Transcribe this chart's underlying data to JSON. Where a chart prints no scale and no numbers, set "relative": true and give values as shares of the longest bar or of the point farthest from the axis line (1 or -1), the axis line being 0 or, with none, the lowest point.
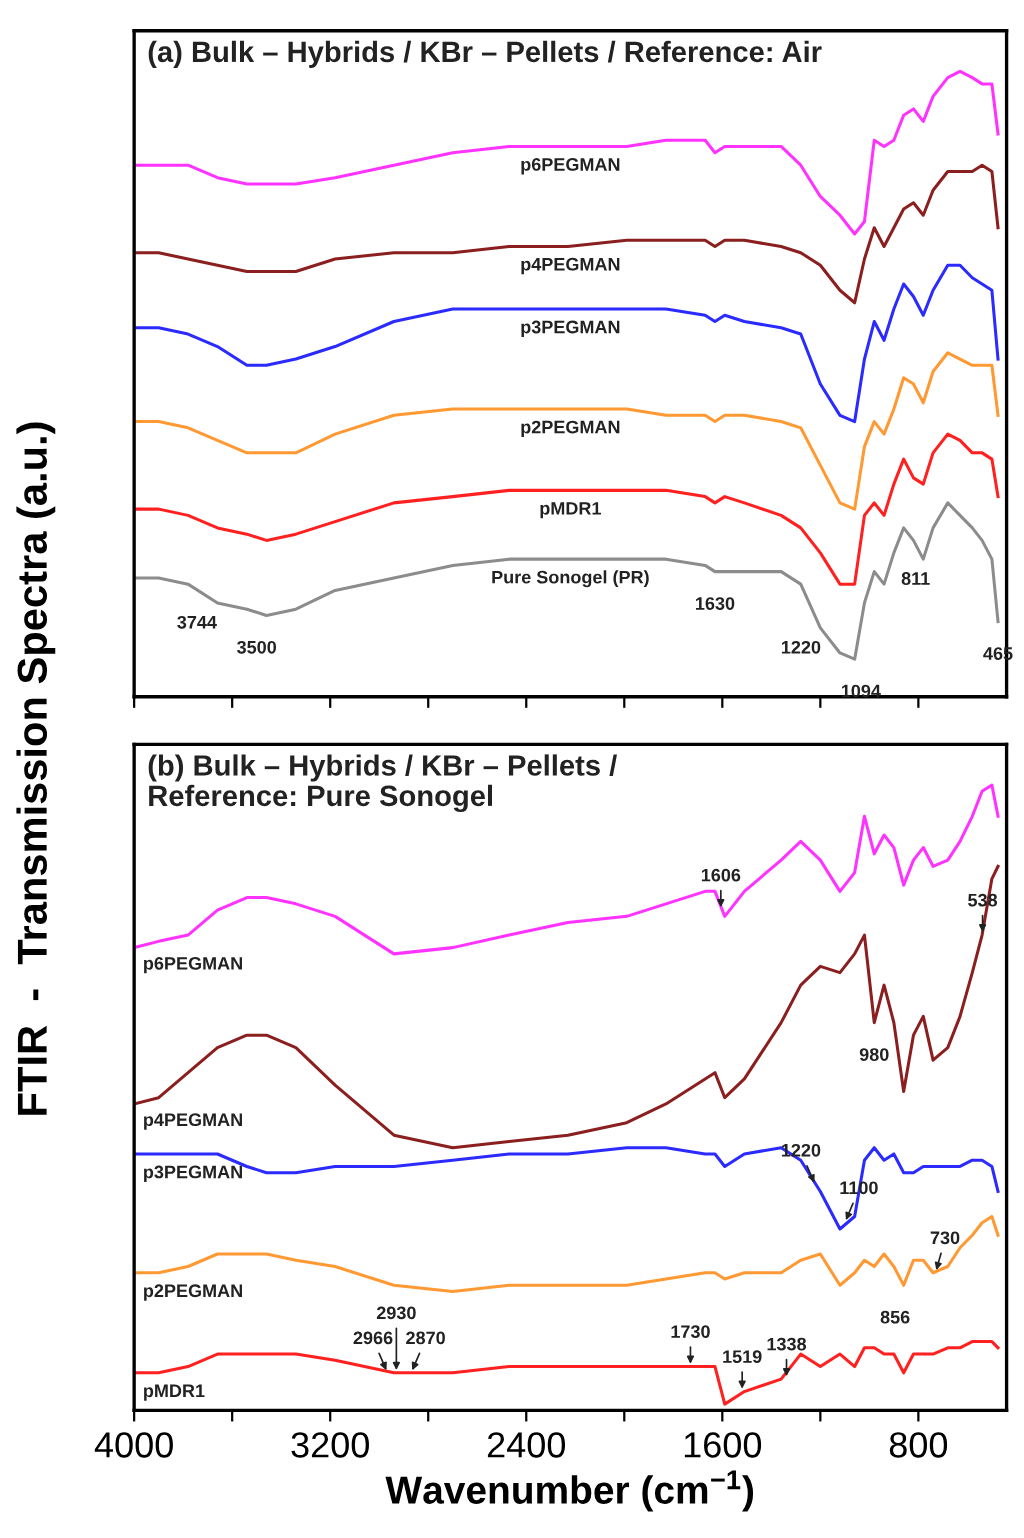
{
  "chart_data": [
    {
      "type": "line",
      "title": "(a) Bulk – Hybrids / KBr – Pellets / Reference: Air",
      "ylabel": "FTIR  -  Transmission Spectra (a.u.)",
      "relative": true,
      "tick_labels": false,
      "x": [
        4000,
        3900,
        3780,
        3660,
        3540,
        3460,
        3340,
        3180,
        2940,
        2700,
        2470,
        2230,
        1990,
        1830,
        1670,
        1630,
        1590,
        1510,
        1360,
        1280,
        1200,
        1120,
        1060,
        1020,
        980,
        940,
        900,
        860,
        820,
        780,
        740,
        680,
        630,
        580,
        540,
        500,
        475
      ],
      "xlim": [
        4000,
        440
      ],
      "xticks": [
        4000,
        {
          "value": 3600,
          "label": null
        },
        3200,
        {
          "value": 2800,
          "label": null
        },
        2400,
        {
          "value": 2000,
          "label": null
        },
        1600,
        {
          "value": 1200,
          "label": null
        },
        800
      ],
      "series": [
        {
          "name": "p6PEGMAN",
          "color": "#ff33ff",
          "values": [
            0.85,
            0.85,
            0.85,
            0.83,
            0.82,
            0.82,
            0.82,
            0.83,
            0.85,
            0.87,
            0.88,
            0.88,
            0.88,
            0.89,
            0.89,
            0.87,
            0.88,
            0.88,
            0.88,
            0.85,
            0.8,
            0.77,
            0.74,
            0.76,
            0.89,
            0.88,
            0.89,
            0.93,
            0.94,
            0.92,
            0.96,
            0.99,
            1.0,
            0.99,
            0.98,
            0.98,
            0.9
          ]
        },
        {
          "name": "p4PEGMAN",
          "color": "#8b1f1f",
          "values": [
            0.71,
            0.71,
            0.7,
            0.69,
            0.68,
            0.68,
            0.68,
            0.7,
            0.71,
            0.71,
            0.72,
            0.72,
            0.73,
            0.73,
            0.73,
            0.72,
            0.73,
            0.73,
            0.72,
            0.71,
            0.69,
            0.65,
            0.63,
            0.7,
            0.75,
            0.72,
            0.75,
            0.78,
            0.79,
            0.77,
            0.81,
            0.84,
            0.84,
            0.84,
            0.85,
            0.84,
            0.75
          ]
        },
        {
          "name": "p3PEGMAN",
          "color": "#2b2bff",
          "values": [
            0.59,
            0.59,
            0.58,
            0.56,
            0.53,
            0.53,
            0.54,
            0.56,
            0.6,
            0.62,
            0.62,
            0.62,
            0.62,
            0.62,
            0.61,
            0.6,
            0.61,
            0.6,
            0.59,
            0.58,
            0.5,
            0.45,
            0.44,
            0.54,
            0.6,
            0.57,
            0.62,
            0.66,
            0.64,
            0.61,
            0.65,
            0.69,
            0.69,
            0.67,
            0.66,
            0.65,
            0.54
          ]
        },
        {
          "name": "p2PEGMAN",
          "color": "#ff9933",
          "values": [
            0.44,
            0.44,
            0.43,
            0.41,
            0.39,
            0.39,
            0.39,
            0.42,
            0.45,
            0.46,
            0.46,
            0.46,
            0.46,
            0.45,
            0.45,
            0.44,
            0.45,
            0.45,
            0.44,
            0.43,
            0.37,
            0.31,
            0.3,
            0.4,
            0.44,
            0.42,
            0.46,
            0.51,
            0.5,
            0.47,
            0.52,
            0.55,
            0.54,
            0.53,
            0.53,
            0.53,
            0.45
          ]
        },
        {
          "name": "pMDR1",
          "color": "#ff2020",
          "values": [
            0.3,
            0.3,
            0.29,
            0.27,
            0.26,
            0.25,
            0.26,
            0.28,
            0.31,
            0.32,
            0.33,
            0.33,
            0.33,
            0.33,
            0.32,
            0.31,
            0.32,
            0.31,
            0.29,
            0.27,
            0.23,
            0.18,
            0.18,
            0.29,
            0.31,
            0.29,
            0.34,
            0.38,
            0.35,
            0.34,
            0.39,
            0.42,
            0.41,
            0.39,
            0.39,
            0.38,
            0.32
          ]
        },
        {
          "name": "Pure Sonogel (PR)",
          "color": "#8c8c8c",
          "values": [
            0.19,
            0.19,
            0.18,
            0.15,
            0.14,
            0.13,
            0.14,
            0.17,
            0.19,
            0.21,
            0.22,
            0.22,
            0.22,
            0.22,
            0.21,
            0.2,
            0.2,
            0.2,
            0.2,
            0.18,
            0.11,
            0.07,
            0.06,
            0.15,
            0.2,
            0.18,
            0.23,
            0.27,
            0.25,
            0.22,
            0.27,
            0.31,
            0.29,
            0.27,
            0.25,
            0.22,
            0.12
          ]
        }
      ],
      "annotations": [
        {
          "text": "3744",
          "x": 3744,
          "y": 0.17
        },
        {
          "text": "3500",
          "x": 3500,
          "y": 0.13
        },
        {
          "text": "1630",
          "x": 1630,
          "y": 0.2
        },
        {
          "text": "1220",
          "x": 1220,
          "y": 0.13
        },
        {
          "text": "1094",
          "x": 1094,
          "y": 0.06
        },
        {
          "text": "811",
          "x": 811,
          "y": 0.24
        },
        {
          "text": "465",
          "x": 475,
          "y": 0.12
        }
      ]
    },
    {
      "type": "line",
      "title": "(b) Bulk – Hybrids / KBr – Pellets /\nReference: Pure Sonogel",
      "xlabel": "Wavenumber (cm$^{−1}$)",
      "relative": true,
      "tick_labels": "x",
      "x": [
        4000,
        3900,
        3780,
        3660,
        3540,
        3460,
        3340,
        3180,
        2940,
        2700,
        2470,
        2230,
        1990,
        1830,
        1670,
        1630,
        1590,
        1510,
        1360,
        1280,
        1200,
        1120,
        1060,
        1020,
        980,
        940,
        900,
        860,
        820,
        780,
        740,
        680,
        630,
        580,
        540,
        500,
        475
      ],
      "xlim": [
        4000,
        440
      ],
      "xticks": [
        4000,
        {
          "value": 3600,
          "label": null
        },
        3200,
        {
          "value": 2800,
          "label": null
        },
        2400,
        {
          "value": 2000,
          "label": null
        },
        1600,
        {
          "value": 1200,
          "label": null
        },
        800
      ],
      "series": [
        {
          "name": "p6PEGMAN",
          "color": "#ff33ff",
          "values": [
            0.74,
            0.75,
            0.76,
            0.8,
            0.82,
            0.82,
            0.81,
            0.79,
            0.73,
            0.74,
            0.76,
            0.78,
            0.79,
            0.81,
            0.83,
            0.83,
            0.79,
            0.83,
            0.88,
            0.91,
            0.88,
            0.83,
            0.86,
            0.95,
            0.89,
            0.92,
            0.9,
            0.84,
            0.88,
            0.9,
            0.87,
            0.88,
            0.91,
            0.95,
            0.99,
            1.0,
            0.95
          ]
        },
        {
          "name": "p4PEGMAN",
          "color": "#8b1f1f",
          "values": [
            0.49,
            0.5,
            0.54,
            0.58,
            0.6,
            0.6,
            0.58,
            0.52,
            0.44,
            0.42,
            0.43,
            0.44,
            0.46,
            0.49,
            0.53,
            0.54,
            0.5,
            0.53,
            0.62,
            0.68,
            0.71,
            0.7,
            0.73,
            0.76,
            0.62,
            0.68,
            0.62,
            0.51,
            0.6,
            0.63,
            0.56,
            0.58,
            0.63,
            0.7,
            0.76,
            0.85,
            0.87
          ]
        },
        {
          "name": "p3PEGMAN",
          "color": "#2b2bff",
          "values": [
            0.41,
            0.41,
            0.41,
            0.41,
            0.39,
            0.38,
            0.38,
            0.39,
            0.39,
            0.4,
            0.41,
            0.41,
            0.42,
            0.42,
            0.41,
            0.41,
            0.39,
            0.41,
            0.42,
            0.4,
            0.35,
            0.29,
            0.31,
            0.4,
            0.42,
            0.4,
            0.41,
            0.38,
            0.38,
            0.39,
            0.39,
            0.39,
            0.39,
            0.4,
            0.4,
            0.39,
            0.35
          ]
        },
        {
          "name": "p2PEGMAN",
          "color": "#ff9933",
          "values": [
            0.22,
            0.22,
            0.23,
            0.25,
            0.25,
            0.25,
            0.24,
            0.23,
            0.2,
            0.19,
            0.2,
            0.2,
            0.2,
            0.21,
            0.22,
            0.22,
            0.21,
            0.22,
            0.22,
            0.24,
            0.25,
            0.2,
            0.22,
            0.24,
            0.23,
            0.25,
            0.23,
            0.2,
            0.24,
            0.24,
            0.22,
            0.23,
            0.26,
            0.28,
            0.3,
            0.31,
            0.28
          ]
        },
        {
          "name": "pMDR1",
          "color": "#ff2020",
          "values": [
            0.06,
            0.06,
            0.07,
            0.09,
            0.09,
            0.09,
            0.09,
            0.08,
            0.06,
            0.06,
            0.07,
            0.07,
            0.07,
            0.07,
            0.07,
            0.07,
            0.01,
            0.03,
            0.05,
            0.09,
            0.07,
            0.09,
            0.07,
            0.1,
            0.1,
            0.09,
            0.09,
            0.06,
            0.09,
            0.09,
            0.09,
            0.1,
            0.1,
            0.11,
            0.11,
            0.11,
            0.1
          ]
        }
      ],
      "annotations": [
        {
          "text": "1606",
          "x": 1606,
          "y": 0.8
        },
        {
          "text": "538",
          "x": 538,
          "y": 0.76
        },
        {
          "text": "980",
          "x": 980,
          "y": 0.62
        },
        {
          "text": "1220",
          "x": 1220,
          "y": 0.36
        },
        {
          "text": "1100",
          "x": 1100,
          "y": 0.3
        },
        {
          "text": "856",
          "x": 856,
          "y": 0.2
        },
        {
          "text": "730",
          "x": 730,
          "y": 0.22
        },
        {
          "text": "2966",
          "x": 2966,
          "y": 0.06
        },
        {
          "text": "2930",
          "x": 2930,
          "y": 0.06
        },
        {
          "text": "2870",
          "x": 2870,
          "y": 0.06
        },
        {
          "text": "1730",
          "x": 1730,
          "y": 0.07
        },
        {
          "text": "1519",
          "x": 1519,
          "y": 0.03
        },
        {
          "text": "1338",
          "x": 1338,
          "y": 0.05
        }
      ]
    }
  ]
}
